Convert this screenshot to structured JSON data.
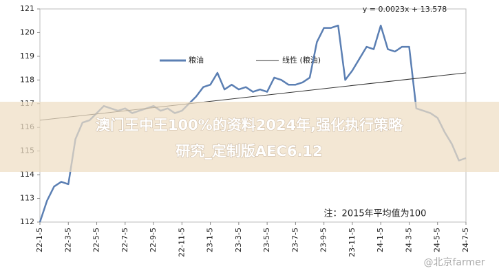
{
  "chart_data": {
    "type": "line",
    "annotation_equation": "y = 0.0023x + 13.578",
    "annotation_note": "注：2015年平均值为100",
    "overlay_title": "澳门王中王100%的资料2024年,强化执行策略",
    "overlay_subtitle": "研究_定制版AEC6.12",
    "watermark": "@北京farmer",
    "x": [
      "22-1-5",
      "22-1-20",
      "22-2-5",
      "22-2-20",
      "22-3-5",
      "22-3-20",
      "22-4-5",
      "22-4-20",
      "22-5-5",
      "22-5-20",
      "22-6-5",
      "22-6-20",
      "22-7-5",
      "22-7-20",
      "22-8-5",
      "22-8-20",
      "22-9-5",
      "22-9-20",
      "22-10-5",
      "22-10-20",
      "22-11-5",
      "22-11-20",
      "22-12-5",
      "22-12-20",
      "23-1-5",
      "23-1-20",
      "23-2-5",
      "23-2-20",
      "23-3-5",
      "23-3-20",
      "23-4-5",
      "23-4-20",
      "23-5-5",
      "23-5-20",
      "23-6-5",
      "23-6-20",
      "23-7-5",
      "23-7-20",
      "23-8-5",
      "23-8-20",
      "23-9-5",
      "23-9-20",
      "23-10-5",
      "23-10-20",
      "23-11-5",
      "23-11-20",
      "23-12-5",
      "23-12-20",
      "24-1-5",
      "24-1-20",
      "24-2-5",
      "24-2-20",
      "24-3-5",
      "24-3-20",
      "24-4-5",
      "24-4-20",
      "24-5-5",
      "24-5-20",
      "24-6-5",
      "24-6-20",
      "24-7-5"
    ],
    "xticks": [
      "22-1-5",
      "22-3-5",
      "22-5-5",
      "22-7-5",
      "22-9-5",
      "22-11-5",
      "23-1-5",
      "23-3-5",
      "23-5-5",
      "23-7-5",
      "23-9-5",
      "23-11-5",
      "24-1-5",
      "24-3-5",
      "24-5-5",
      "24-7-5"
    ],
    "series": [
      {
        "name": "粮油",
        "color": "#5b7fb3",
        "values": [
          112.0,
          112.9,
          113.5,
          113.7,
          113.6,
          115.5,
          116.2,
          116.3,
          116.6,
          116.9,
          116.8,
          116.7,
          116.8,
          116.6,
          116.7,
          116.8,
          116.9,
          116.7,
          116.8,
          116.6,
          116.7,
          117.0,
          117.3,
          117.7,
          117.8,
          118.3,
          117.6,
          117.8,
          117.6,
          117.7,
          117.5,
          117.6,
          117.5,
          118.1,
          118.0,
          117.8,
          117.8,
          117.9,
          118.1,
          119.6,
          120.2,
          120.2,
          120.3,
          118.0,
          118.4,
          118.9,
          119.4,
          119.3,
          120.3,
          119.3,
          119.2,
          119.4,
          119.4,
          116.8,
          116.7,
          116.6,
          116.4,
          115.8,
          115.3,
          114.6,
          114.7
        ]
      },
      {
        "name": "线性 (粮油)",
        "color": "#333333",
        "x": [
          "22-1-5",
          "24-7-5"
        ],
        "values": [
          116.3,
          118.3
        ]
      }
    ],
    "ylim": [
      112,
      121
    ],
    "yticks": [
      112,
      113,
      114,
      115,
      116,
      117,
      118,
      119,
      120,
      121
    ]
  }
}
